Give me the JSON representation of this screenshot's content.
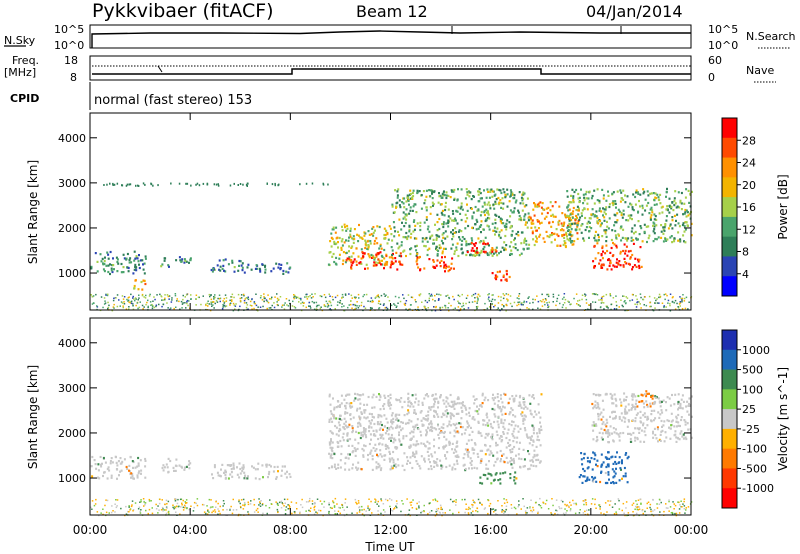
{
  "header": {
    "station": "Pykkvibaer (fitACF)",
    "beam": "Beam 12",
    "date": "04/Jan/2014"
  },
  "top_panel": {
    "left_label": "N.Sky",
    "left_ticks": [
      "10^5",
      "10^0"
    ],
    "right_ticks": [
      "10^5",
      "10^0"
    ],
    "right_label": "N.Search"
  },
  "freq_panel": {
    "left_label": "Freq.",
    "left_unit": "[MHz]",
    "left_ticks": [
      "18",
      "8"
    ],
    "right_ticks": [
      "60",
      "0"
    ],
    "right_label": "Nave"
  },
  "cpid_panel": {
    "label": "CPID",
    "text": "normal (fast stereo) 153"
  },
  "axes": {
    "xlabel": "Time UT",
    "x_ticks": [
      "00:00",
      "04:00",
      "08:00",
      "12:00",
      "16:00",
      "20:00",
      "00:00"
    ],
    "ylabel": "Slant Range [km]",
    "y_ticks": [
      "1000",
      "2000",
      "3000",
      "4000"
    ]
  },
  "power_colorbar": {
    "label": "Power [dB]",
    "ticks": [
      "28",
      "24",
      "20",
      "16",
      "12",
      "8",
      "4"
    ],
    "colors": [
      "#ff0000",
      "#ff4a00",
      "#ff9000",
      "#f3b400",
      "#a6d04a",
      "#4aa46c",
      "#2e7e58",
      "#2a44b4",
      "#0000ff"
    ]
  },
  "velocity_colorbar": {
    "label": "Velocity [m s^-1]",
    "ticks": [
      "1000",
      "500",
      "100",
      "25",
      "-25",
      "-100",
      "-500",
      "-1000"
    ],
    "colors": [
      "#1e2fb0",
      "#1e6ab8",
      "#3d8a50",
      "#7ccc44",
      "#c8c8c8",
      "#ffb000",
      "#ff7a00",
      "#ff3800",
      "#ff0000"
    ]
  },
  "chart_data": {
    "type": "heatmap",
    "title": "Pykkvibaer (fitACF)  Beam 12  04/Jan/2014",
    "xlabel": "Time UT",
    "ylabel": "Slant Range [km]",
    "x_range_hours": [
      0,
      24
    ],
    "y_range_km": [
      180,
      4550
    ],
    "freq_mhz": [
      {
        "from_h": 0,
        "to_h": 8,
        "value": 10
      },
      {
        "from_h": 8,
        "to_h": 18,
        "value": 12
      },
      {
        "from_h": 18,
        "to_h": 24,
        "value": 10
      }
    ],
    "nave_dotted_level": 45,
    "power_regions": [
      {
        "t0": 0.0,
        "t1": 2.2,
        "r0": 1000,
        "r1": 1500,
        "level_db": 8
      },
      {
        "t0": 1.6,
        "t1": 2.2,
        "r0": 650,
        "r1": 900,
        "level_db": 20
      },
      {
        "t0": 2.8,
        "t1": 4.0,
        "r0": 1150,
        "r1": 1400,
        "level_db": 8
      },
      {
        "t0": 4.8,
        "t1": 6.0,
        "r0": 1050,
        "r1": 1350,
        "level_db": 8
      },
      {
        "t0": 6.0,
        "t1": 8.0,
        "r0": 1000,
        "r1": 1250,
        "level_db": 6
      },
      {
        "t0": 9.5,
        "t1": 12.0,
        "r0": 1200,
        "r1": 2100,
        "level_db": 16
      },
      {
        "t0": 10.2,
        "t1": 12.5,
        "r0": 1100,
        "r1": 1500,
        "level_db": 28
      },
      {
        "t0": 12.0,
        "t1": 17.5,
        "r0": 1400,
        "r1": 2900,
        "level_db": 12
      },
      {
        "t0": 13.0,
        "t1": 14.5,
        "r0": 1050,
        "r1": 1400,
        "level_db": 28
      },
      {
        "t0": 15.0,
        "t1": 16.3,
        "r0": 1450,
        "r1": 1700,
        "level_db": 28
      },
      {
        "t0": 16.0,
        "t1": 17.0,
        "r0": 850,
        "r1": 1100,
        "level_db": 28
      },
      {
        "t0": 17.5,
        "t1": 19.5,
        "r0": 1600,
        "r1": 2600,
        "level_db": 20
      },
      {
        "t0": 20.0,
        "t1": 22.0,
        "r0": 1100,
        "r1": 1700,
        "level_db": 28
      },
      {
        "t0": 19.0,
        "t1": 24.0,
        "r0": 1700,
        "r1": 2900,
        "level_db": 12
      }
    ],
    "velocity_regions": [
      {
        "t0": 0.0,
        "t1": 2.2,
        "r0": 1000,
        "r1": 1500,
        "velocity": 0
      },
      {
        "t0": 2.8,
        "t1": 4.0,
        "r0": 1150,
        "r1": 1450,
        "velocity": 0
      },
      {
        "t0": 4.8,
        "t1": 8.0,
        "r0": 1000,
        "r1": 1350,
        "velocity": 0
      },
      {
        "t0": 9.5,
        "t1": 18.0,
        "r0": 1200,
        "r1": 2900,
        "velocity": 0
      },
      {
        "t0": 15.5,
        "t1": 17.0,
        "r0": 900,
        "r1": 1150,
        "velocity": 100
      },
      {
        "t0": 19.5,
        "t1": 21.5,
        "r0": 900,
        "r1": 1600,
        "velocity": 700
      },
      {
        "t0": 21.8,
        "t1": 22.5,
        "r0": 2600,
        "r1": 2950,
        "velocity": -400
      },
      {
        "t0": 20.0,
        "t1": 24.0,
        "r0": 1800,
        "r1": 2900,
        "velocity": 0
      }
    ]
  }
}
